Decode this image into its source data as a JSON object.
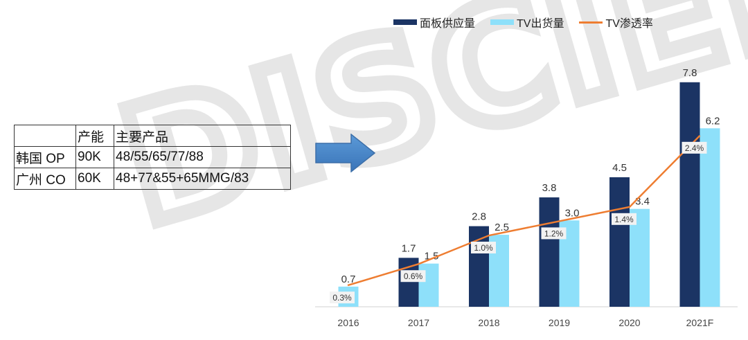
{
  "watermark": "DISCIEN",
  "table": {
    "headers": [
      "",
      "产能",
      "主要产品"
    ],
    "rows": [
      [
        "韩国 OP",
        "90K",
        "48/55/65/77/88"
      ],
      [
        "广州 CO",
        "60K",
        "48+77&55+65MMG/83"
      ]
    ]
  },
  "colors": {
    "panel": "#1b3464",
    "tv": "#8ee0fa",
    "rate": "#ee7d31",
    "arrow": "#4a86c8"
  },
  "chart_data": {
    "type": "bar",
    "categories": [
      "2016",
      "2017",
      "2018",
      "2019",
      "2020",
      "2021F"
    ],
    "series": [
      {
        "name": "面板供应量",
        "type": "bar",
        "values": [
          null,
          1.7,
          2.8,
          3.8,
          4.5,
          7.8
        ],
        "labels": [
          "",
          "1.7",
          "2.8",
          "3.8",
          "4.5",
          "7.8"
        ]
      },
      {
        "name": "TV出货量",
        "type": "bar",
        "values": [
          0.7,
          1.5,
          2.5,
          3.0,
          3.4,
          6.2
        ],
        "labels": [
          "0.7",
          "1.5",
          "2.5",
          "3.0",
          "3.4",
          "6.2"
        ]
      },
      {
        "name": "TV渗透率",
        "type": "line",
        "values": [
          0.3,
          0.6,
          1.0,
          1.2,
          1.4,
          2.4
        ],
        "labels": [
          "0.3%",
          "0.6%",
          "1.0%",
          "1.2%",
          "1.4%",
          "2.4%"
        ]
      }
    ],
    "ylim": [
      0,
      8.3
    ],
    "y2lim": [
      0,
      3.35
    ],
    "legend": "top-right",
    "grid": false
  }
}
